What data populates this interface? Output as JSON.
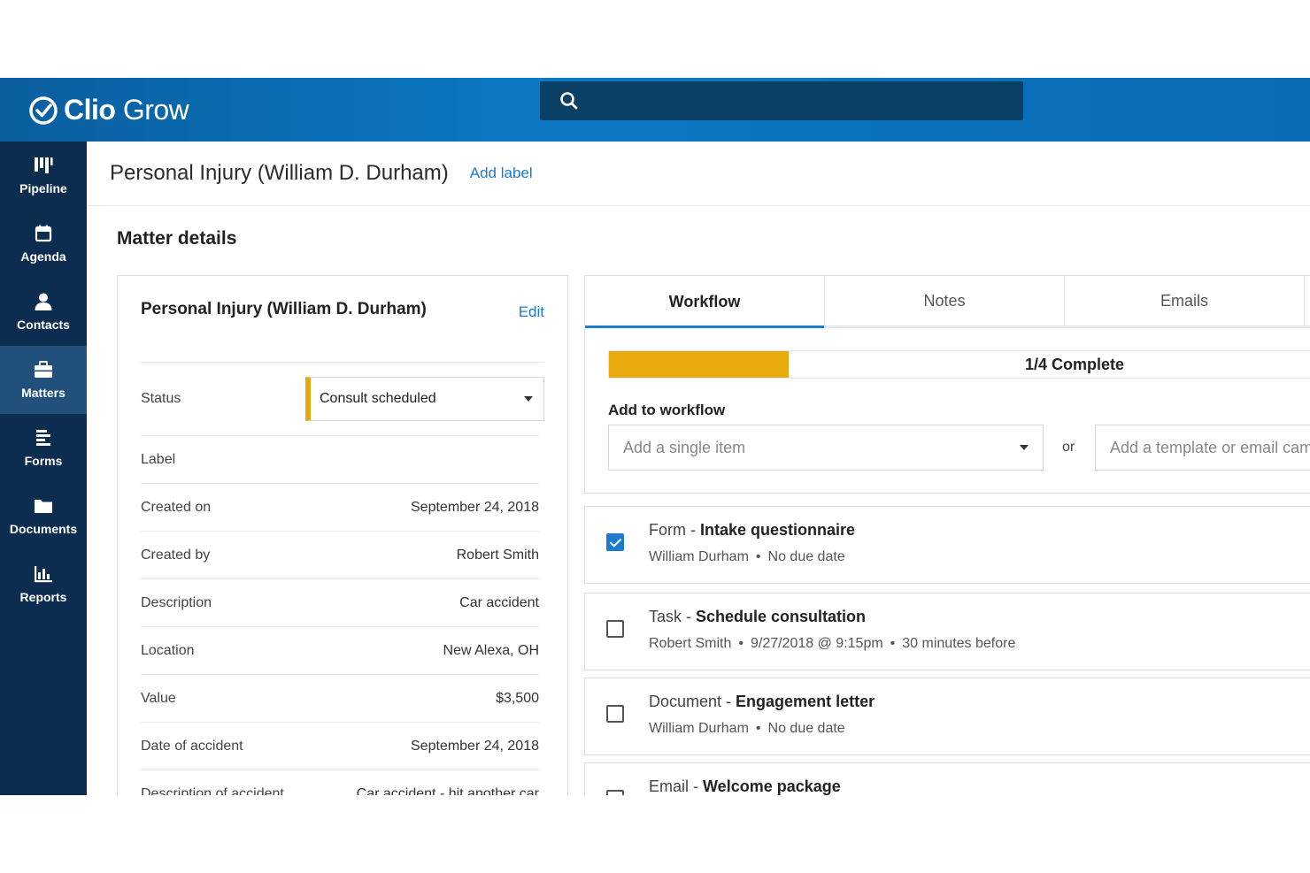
{
  "app": {
    "brand_bold": "Clio",
    "brand_light": "Grow"
  },
  "search": {
    "placeholder": ""
  },
  "sidebar": {
    "items": [
      {
        "label": "Pipeline",
        "icon": "pipeline-icon"
      },
      {
        "label": "Agenda",
        "icon": "calendar-icon"
      },
      {
        "label": "Contacts",
        "icon": "person-icon"
      },
      {
        "label": "Matters",
        "icon": "briefcase-icon",
        "active": true
      },
      {
        "label": "Forms",
        "icon": "form-icon"
      },
      {
        "label": "Documents",
        "icon": "folder-icon"
      },
      {
        "label": "Reports",
        "icon": "bar-chart-icon"
      }
    ]
  },
  "header": {
    "title": "Personal Injury (William D. Durham)",
    "add_label": "Add label"
  },
  "details": {
    "section_title": "Matter details",
    "card_title": "Personal Injury (William D. Durham)",
    "edit_label": "Edit",
    "status_label": "Status",
    "status_value": "Consult scheduled",
    "label_label": "Label",
    "rows": [
      {
        "key": "Created on",
        "value": "September 24, 2018"
      },
      {
        "key": "Created by",
        "value": "Robert Smith"
      },
      {
        "key": "Description",
        "value": "Car accident"
      },
      {
        "key": "Location",
        "value": "New Alexa, OH"
      },
      {
        "key": "Value",
        "value": "$3,500"
      },
      {
        "key": "Date of accident",
        "value": "September 24, 2018"
      },
      {
        "key": "Description of accident",
        "value": "Car accident - hit another car"
      }
    ]
  },
  "workflow": {
    "tabs": [
      "Workflow",
      "Notes",
      "Emails"
    ],
    "active_tab": "Workflow",
    "progress_text": "1/4 Complete",
    "progress_fraction": 0.25,
    "add_label": "Add to workflow",
    "single_placeholder": "Add a single item",
    "or_text": "or",
    "template_placeholder": "Add a template or email campaign",
    "items": [
      {
        "type": "Form",
        "title": "Intake questionnaire",
        "person": "William Durham",
        "meta": [
          "No due date"
        ],
        "checked": true
      },
      {
        "type": "Task",
        "title": "Schedule consultation",
        "person": "Robert Smith",
        "meta": [
          "9/27/2018 @ 9:15pm",
          "30 minutes before"
        ],
        "checked": false
      },
      {
        "type": "Document",
        "title": "Engagement letter",
        "person": "William Durham",
        "meta": [
          "No due date"
        ],
        "checked": false
      },
      {
        "type": "Email",
        "title": "Welcome package",
        "person": "",
        "meta": [],
        "checked": false
      }
    ]
  },
  "colors": {
    "accent": "#1a7bd0",
    "warning": "#e8a90c",
    "sidebar": "#0c2d4f",
    "header": "#0b78c4"
  }
}
